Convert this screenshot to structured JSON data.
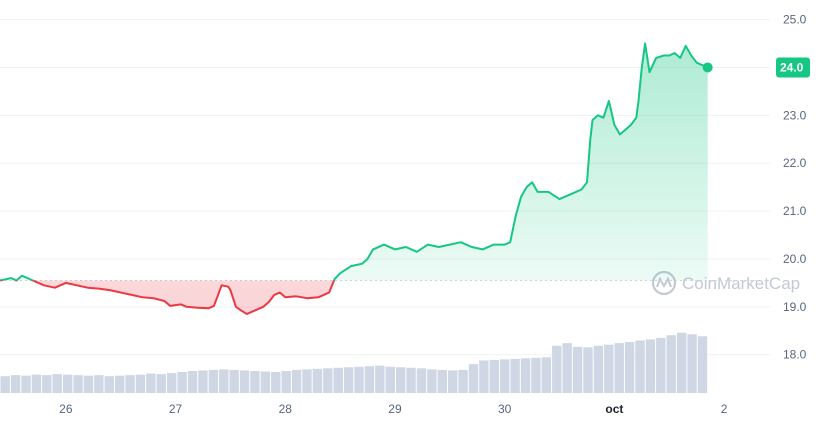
{
  "chart_data": {
    "type": "line",
    "watermark": "CoinMarketCap",
    "baseline": 19.55,
    "ylim": [
      17.2,
      25.2
    ],
    "y_ticks": [
      "25.0",
      "24.0",
      "23.0",
      "22.0",
      "21.0",
      "20.0",
      "19.0",
      "18.0"
    ],
    "x_ticks": [
      {
        "t": 0.5,
        "label": "26"
      },
      {
        "t": 1.5,
        "label": "27"
      },
      {
        "t": 2.5,
        "label": "28"
      },
      {
        "t": 3.5,
        "label": "29"
      },
      {
        "t": 4.5,
        "label": "30"
      },
      {
        "t": 5.5,
        "label": "oct"
      },
      {
        "t": 6.5,
        "label": "2"
      }
    ],
    "xlim": [
      -0.1,
      6.9
    ],
    "current_price": "24.0",
    "colors": {
      "up": "#16c784",
      "down": "#ea3943",
      "badge": "#16c784",
      "volume": "#cfd6e4",
      "grid": "#eff2f5",
      "baseline": "#cfd6e4"
    },
    "price": [
      [
        -0.1,
        19.55
      ],
      [
        0.0,
        19.6
      ],
      [
        0.05,
        19.55
      ],
      [
        0.1,
        19.65
      ],
      [
        0.15,
        19.6
      ],
      [
        0.2,
        19.55
      ],
      [
        0.3,
        19.45
      ],
      [
        0.4,
        19.4
      ],
      [
        0.5,
        19.5
      ],
      [
        0.6,
        19.45
      ],
      [
        0.7,
        19.4
      ],
      [
        0.8,
        19.38
      ],
      [
        0.9,
        19.35
      ],
      [
        1.0,
        19.3
      ],
      [
        1.1,
        19.25
      ],
      [
        1.2,
        19.2
      ],
      [
        1.3,
        19.18
      ],
      [
        1.4,
        19.12
      ],
      [
        1.45,
        19.02
      ],
      [
        1.55,
        19.05
      ],
      [
        1.6,
        19.0
      ],
      [
        1.7,
        18.98
      ],
      [
        1.8,
        18.97
      ],
      [
        1.85,
        19.02
      ],
      [
        1.88,
        19.2
      ],
      [
        1.92,
        19.45
      ],
      [
        1.98,
        19.42
      ],
      [
        2.0,
        19.35
      ],
      [
        2.05,
        19.0
      ],
      [
        2.1,
        18.92
      ],
      [
        2.15,
        18.85
      ],
      [
        2.2,
        18.9
      ],
      [
        2.25,
        18.95
      ],
      [
        2.3,
        19.0
      ],
      [
        2.35,
        19.1
      ],
      [
        2.4,
        19.25
      ],
      [
        2.45,
        19.3
      ],
      [
        2.5,
        19.2
      ],
      [
        2.6,
        19.22
      ],
      [
        2.7,
        19.18
      ],
      [
        2.8,
        19.2
      ],
      [
        2.85,
        19.25
      ],
      [
        2.9,
        19.3
      ],
      [
        2.95,
        19.58
      ],
      [
        3.0,
        19.7
      ],
      [
        3.1,
        19.85
      ],
      [
        3.2,
        19.9
      ],
      [
        3.25,
        20.0
      ],
      [
        3.3,
        20.2
      ],
      [
        3.4,
        20.3
      ],
      [
        3.5,
        20.2
      ],
      [
        3.6,
        20.25
      ],
      [
        3.7,
        20.15
      ],
      [
        3.8,
        20.3
      ],
      [
        3.9,
        20.25
      ],
      [
        4.0,
        20.3
      ],
      [
        4.1,
        20.35
      ],
      [
        4.2,
        20.25
      ],
      [
        4.3,
        20.2
      ],
      [
        4.4,
        20.3
      ],
      [
        4.5,
        20.3
      ],
      [
        4.55,
        20.35
      ],
      [
        4.6,
        20.9
      ],
      [
        4.65,
        21.3
      ],
      [
        4.7,
        21.5
      ],
      [
        4.75,
        21.6
      ],
      [
        4.8,
        21.4
      ],
      [
        4.9,
        21.4
      ],
      [
        5.0,
        21.25
      ],
      [
        5.05,
        21.3
      ],
      [
        5.1,
        21.35
      ],
      [
        5.2,
        21.45
      ],
      [
        5.25,
        21.6
      ],
      [
        5.28,
        22.5
      ],
      [
        5.3,
        22.9
      ],
      [
        5.35,
        23.0
      ],
      [
        5.4,
        22.95
      ],
      [
        5.45,
        23.3
      ],
      [
        5.5,
        22.8
      ],
      [
        5.55,
        22.6
      ],
      [
        5.6,
        22.7
      ],
      [
        5.65,
        22.8
      ],
      [
        5.7,
        22.95
      ],
      [
        5.72,
        23.3
      ],
      [
        5.75,
        24.0
      ],
      [
        5.78,
        24.5
      ],
      [
        5.82,
        23.9
      ],
      [
        5.88,
        24.2
      ],
      [
        5.95,
        24.25
      ],
      [
        6.0,
        24.25
      ],
      [
        6.05,
        24.3
      ],
      [
        6.1,
        24.2
      ],
      [
        6.15,
        24.45
      ],
      [
        6.2,
        24.25
      ],
      [
        6.25,
        24.1
      ],
      [
        6.3,
        24.05
      ],
      [
        6.35,
        24.0
      ]
    ],
    "volume": [
      0.32,
      0.34,
      0.33,
      0.35,
      0.34,
      0.36,
      0.35,
      0.34,
      0.33,
      0.34,
      0.32,
      0.33,
      0.34,
      0.35,
      0.37,
      0.36,
      0.38,
      0.4,
      0.42,
      0.43,
      0.44,
      0.45,
      0.44,
      0.43,
      0.42,
      0.41,
      0.4,
      0.42,
      0.44,
      0.45,
      0.46,
      0.47,
      0.48,
      0.49,
      0.5,
      0.51,
      0.52,
      0.5,
      0.49,
      0.48,
      0.47,
      0.45,
      0.44,
      0.43,
      0.44,
      0.55,
      0.62,
      0.63,
      0.64,
      0.65,
      0.66,
      0.67,
      0.68,
      0.9,
      0.95,
      0.88,
      0.87,
      0.9,
      0.92,
      0.95,
      0.97,
      1.0,
      1.02,
      1.05,
      1.1,
      1.15,
      1.12,
      1.08
    ],
    "volume_max": 1.2
  }
}
